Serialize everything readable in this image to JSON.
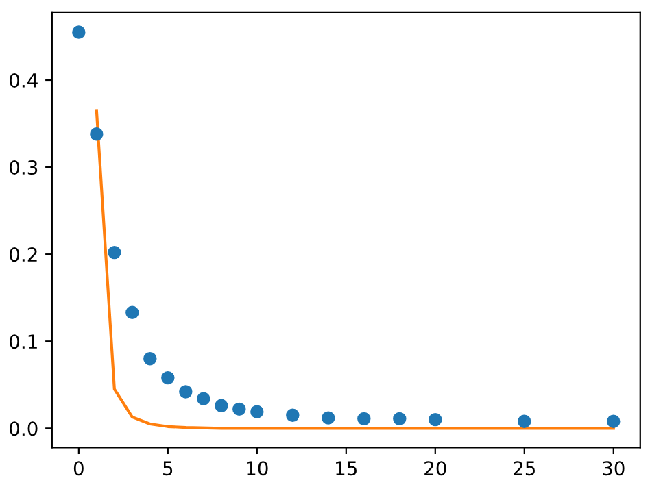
{
  "chart_data": {
    "type": "scatter",
    "xlim": [
      -1.5,
      31.5
    ],
    "ylim": [
      -0.022,
      0.478
    ],
    "xticks": [
      0,
      5,
      10,
      15,
      20,
      25,
      30
    ],
    "yticks": [
      {
        "value": 0,
        "label": "0.0"
      },
      0.1,
      0.2,
      0.3,
      0.4
    ],
    "grid": false,
    "series": [
      {
        "color": "#1f77b4",
        "marker": "circle",
        "x": [
          0,
          1,
          2,
          3,
          4,
          5,
          6,
          7,
          8,
          9,
          10,
          12,
          14,
          16,
          18,
          20,
          25,
          30
        ],
        "values": [
          0.455,
          0.338,
          0.202,
          0.133,
          0.08,
          0.058,
          0.042,
          0.034,
          0.026,
          0.022,
          0.019,
          0.015,
          0.012,
          0.011,
          0.011,
          0.01,
          0.008,
          0.008
        ]
      },
      {
        "type": "line",
        "color": "#ff7f0e",
        "marker": "none",
        "x": [
          1,
          2,
          3,
          4,
          5,
          6,
          8,
          10,
          15,
          20,
          25,
          30
        ],
        "values": [
          0.365,
          0.045,
          0.013,
          0.005,
          0.002,
          0.001,
          0,
          0,
          0,
          0,
          0,
          0
        ]
      }
    ]
  }
}
